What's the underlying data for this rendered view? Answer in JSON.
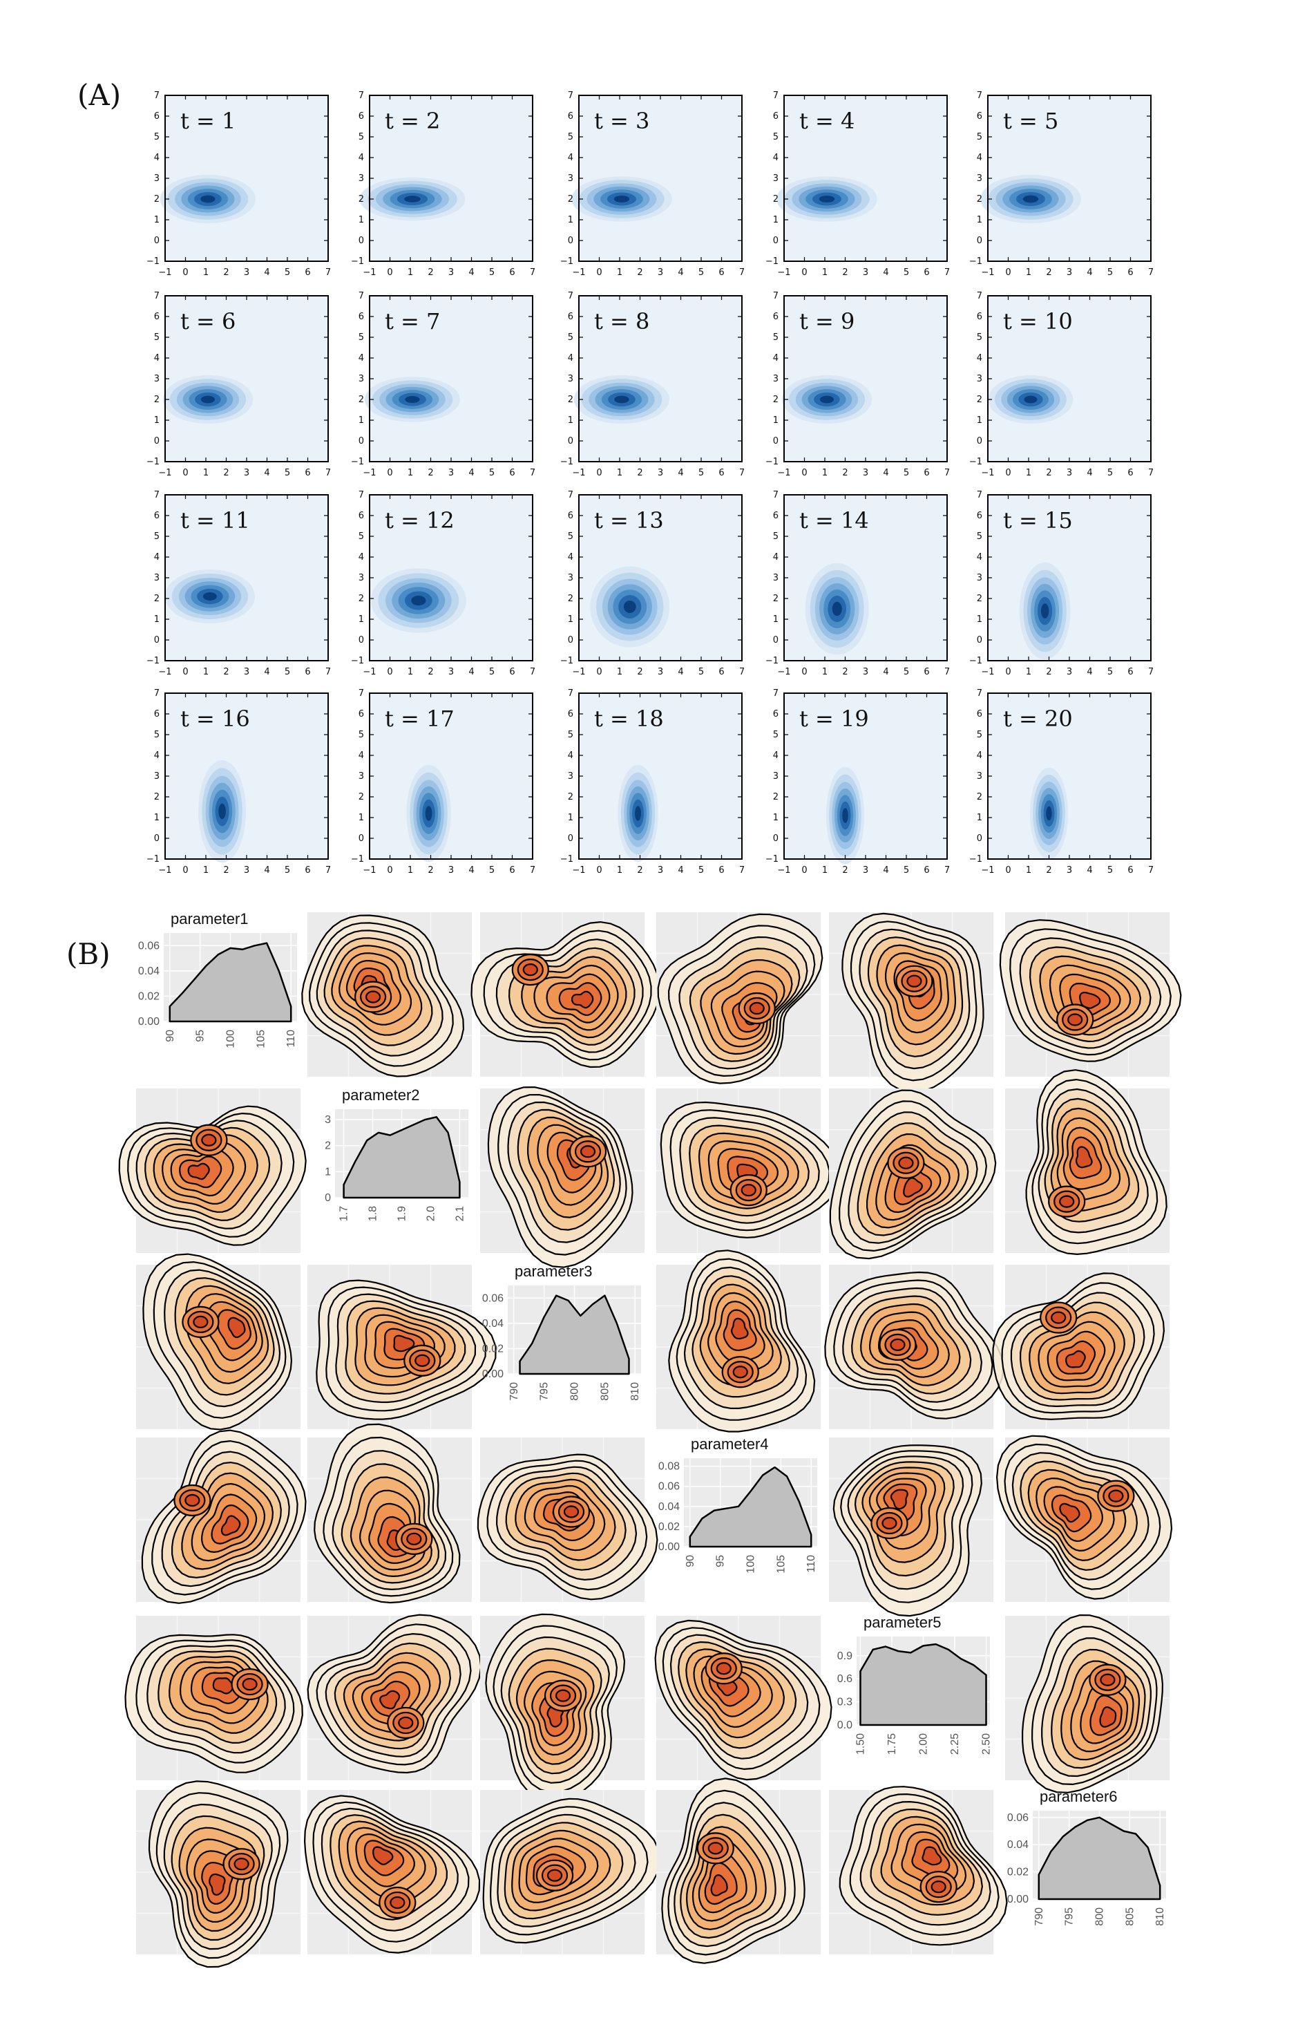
{
  "panel_labels": {
    "a": "(A)",
    "b": "(B)"
  },
  "colors": {
    "a_background": "#e9f1f9",
    "a_levels": [
      "#dae8f5",
      "#bdd7ee",
      "#9cc3e5",
      "#72a9d7",
      "#4a8cc6",
      "#2568ad",
      "#0b3f7c"
    ],
    "b_background": "#ebebeb",
    "b_levels": [
      "#f7ecd8",
      "#f6ddbb",
      "#f4c892",
      "#f2ad6c",
      "#ee8f4e",
      "#e56b35",
      "#d44a22"
    ],
    "density_fill": "#bfbfbf"
  },
  "chart_data": [
    {
      "panel": "A",
      "type": "heatmap",
      "title": "",
      "xlabel": "",
      "ylabel": "",
      "xlim": [
        -1,
        7
      ],
      "ylim": [
        -1,
        7
      ],
      "xticks": [
        "-1",
        "0",
        "1",
        "2",
        "3",
        "4",
        "5",
        "6",
        "7"
      ],
      "yticks": [
        "-1",
        "0",
        "1",
        "2",
        "3",
        "4",
        "5",
        "6",
        "7"
      ],
      "grid": false,
      "description_free_params": "each frame is a 2D Gaussian density; mean (mx,my), standard deviations (sx,sy)",
      "frames": [
        {
          "label": "t = 1",
          "mx": 1.1,
          "my": 2.0,
          "sx": 0.9,
          "sy": 0.45
        },
        {
          "label": "t = 2",
          "mx": 1.1,
          "my": 2.0,
          "sx": 1.0,
          "sy": 0.4
        },
        {
          "label": "t = 3",
          "mx": 1.1,
          "my": 2.0,
          "sx": 0.95,
          "sy": 0.42
        },
        {
          "label": "t = 4",
          "mx": 1.1,
          "my": 2.0,
          "sx": 0.95,
          "sy": 0.42
        },
        {
          "label": "t = 5",
          "mx": 1.1,
          "my": 2.0,
          "sx": 0.95,
          "sy": 0.45
        },
        {
          "label": "t = 6",
          "mx": 1.1,
          "my": 2.0,
          "sx": 0.85,
          "sy": 0.45
        },
        {
          "label": "t = 7",
          "mx": 1.1,
          "my": 2.0,
          "sx": 0.9,
          "sy": 0.42
        },
        {
          "label": "t = 8",
          "mx": 1.1,
          "my": 2.0,
          "sx": 0.9,
          "sy": 0.45
        },
        {
          "label": "t = 9",
          "mx": 1.1,
          "my": 2.0,
          "sx": 0.85,
          "sy": 0.45
        },
        {
          "label": "t = 10",
          "mx": 1.1,
          "my": 2.0,
          "sx": 0.8,
          "sy": 0.45
        },
        {
          "label": "t = 11",
          "mx": 1.2,
          "my": 2.1,
          "sx": 0.85,
          "sy": 0.5
        },
        {
          "label": "t = 12",
          "mx": 1.4,
          "my": 1.9,
          "sx": 0.9,
          "sy": 0.6
        },
        {
          "label": "t = 13",
          "mx": 1.5,
          "my": 1.6,
          "sx": 0.75,
          "sy": 0.75
        },
        {
          "label": "t = 14",
          "mx": 1.6,
          "my": 1.5,
          "sx": 0.6,
          "sy": 0.85
        },
        {
          "label": "t = 15",
          "mx": 1.8,
          "my": 1.4,
          "sx": 0.48,
          "sy": 0.9
        },
        {
          "label": "t = 16",
          "mx": 1.8,
          "my": 1.3,
          "sx": 0.45,
          "sy": 0.95
        },
        {
          "label": "t = 17",
          "mx": 1.9,
          "my": 1.2,
          "sx": 0.42,
          "sy": 0.9
        },
        {
          "label": "t = 18",
          "mx": 1.9,
          "my": 1.2,
          "sx": 0.38,
          "sy": 0.9
        },
        {
          "label": "t = 19",
          "mx": 2.0,
          "my": 1.1,
          "sx": 0.36,
          "sy": 0.9
        },
        {
          "label": "t = 20",
          "mx": 2.0,
          "my": 1.2,
          "sx": 0.36,
          "sy": 0.85
        }
      ]
    },
    {
      "panel": "B",
      "type": "area",
      "title": "",
      "grid": true,
      "diagonal": [
        {
          "name": "parameter1",
          "xticks": [
            "90",
            "95",
            "100",
            "105",
            "110"
          ],
          "xlim": [
            89,
            111
          ],
          "yticks": [
            "0.00",
            "0.02",
            "0.04",
            "0.06"
          ],
          "ylim": [
            0,
            0.07
          ],
          "x": [
            90,
            92,
            94,
            96,
            98,
            100,
            102,
            104,
            106,
            108,
            110
          ],
          "y": [
            0.012,
            0.022,
            0.033,
            0.044,
            0.053,
            0.058,
            0.057,
            0.06,
            0.062,
            0.04,
            0.012
          ]
        },
        {
          "name": "parameter2",
          "xticks": [
            "1.7",
            "1.8",
            "1.9",
            "2.0",
            "2.1"
          ],
          "xlim": [
            1.67,
            2.13
          ],
          "yticks": [
            "0",
            "1",
            "2",
            "3"
          ],
          "ylim": [
            0,
            3.4
          ],
          "x": [
            1.7,
            1.74,
            1.78,
            1.82,
            1.86,
            1.9,
            1.94,
            1.98,
            2.02,
            2.06,
            2.1
          ],
          "y": [
            0.5,
            1.4,
            2.2,
            2.5,
            2.4,
            2.6,
            2.8,
            3.0,
            3.1,
            2.5,
            0.6
          ]
        },
        {
          "name": "parameter3",
          "xticks": [
            "790",
            "795",
            "800",
            "805",
            "810"
          ],
          "xlim": [
            789,
            811
          ],
          "yticks": [
            "0.00",
            "0.02",
            "0.04",
            "0.06"
          ],
          "ylim": [
            0,
            0.07
          ],
          "x": [
            791,
            793,
            795,
            797,
            799,
            801,
            803,
            805,
            807,
            809
          ],
          "y": [
            0.01,
            0.024,
            0.045,
            0.062,
            0.058,
            0.046,
            0.055,
            0.062,
            0.04,
            0.012
          ]
        },
        {
          "name": "parameter4",
          "xticks": [
            "90",
            "95",
            "100",
            "105",
            "110"
          ],
          "xlim": [
            89,
            111
          ],
          "yticks": [
            "0.00",
            "0.02",
            "0.04",
            "0.06",
            "0.08"
          ],
          "ylim": [
            0,
            0.088
          ],
          "x": [
            90,
            92,
            94,
            96,
            98,
            100,
            102,
            104,
            106,
            108,
            110
          ],
          "y": [
            0.01,
            0.028,
            0.036,
            0.038,
            0.04,
            0.055,
            0.071,
            0.079,
            0.07,
            0.045,
            0.012
          ]
        },
        {
          "name": "parameter5",
          "xticks": [
            "1.50",
            "1.75",
            "2.00",
            "2.25",
            "2.50"
          ],
          "xlim": [
            1.47,
            2.53
          ],
          "yticks": [
            "0.0",
            "0.3",
            "0.6",
            "0.9"
          ],
          "ylim": [
            0,
            1.15
          ],
          "x": [
            1.5,
            1.6,
            1.7,
            1.8,
            1.9,
            2.0,
            2.1,
            2.2,
            2.3,
            2.4,
            2.5
          ],
          "y": [
            0.7,
            0.98,
            1.02,
            0.96,
            0.94,
            1.03,
            1.05,
            0.98,
            0.86,
            0.78,
            0.65
          ]
        },
        {
          "name": "parameter6",
          "xticks": [
            "790",
            "795",
            "800",
            "805",
            "810"
          ],
          "xlim": [
            789,
            811
          ],
          "yticks": [
            "0.00",
            "0.02",
            "0.04",
            "0.06"
          ],
          "ylim": [
            0,
            0.065
          ],
          "x": [
            790,
            792,
            794,
            796,
            798,
            800,
            802,
            804,
            806,
            808,
            810
          ],
          "y": [
            0.018,
            0.035,
            0.046,
            0.053,
            0.058,
            0.06,
            0.055,
            0.05,
            0.048,
            0.038,
            0.01
          ]
        }
      ]
    }
  ]
}
